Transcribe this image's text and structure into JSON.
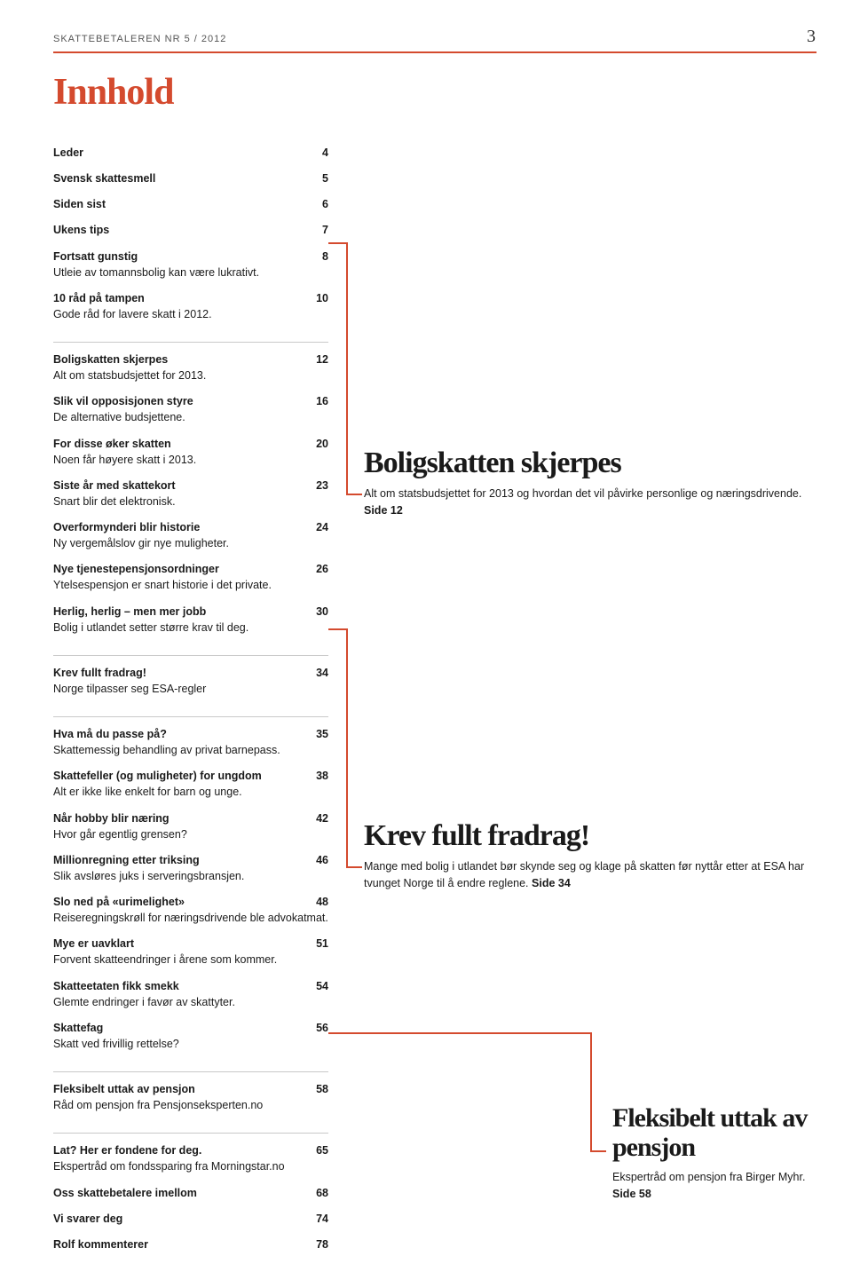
{
  "header": {
    "pub": "SKATTEBETALEREN NR 5 / 2012",
    "page": "3"
  },
  "title": "Innhold",
  "accent": "#d44a2e",
  "toc": {
    "sections": [
      {
        "items": [
          {
            "title": "Leder",
            "page": "4"
          },
          {
            "title": "Svensk skattesmell",
            "page": "5"
          },
          {
            "title": "Siden sist",
            "page": "6"
          },
          {
            "title": "Ukens tips",
            "page": "7"
          },
          {
            "title": "Fortsatt gunstig",
            "sub": "Utleie av tomannsbolig kan være lukrativt.",
            "page": "8"
          },
          {
            "title": "10 råd på tampen",
            "sub": "Gode råd for lavere skatt i 2012.",
            "page": "10"
          }
        ]
      },
      {
        "items": [
          {
            "title": "Boligskatten skjerpes",
            "sub": "Alt om statsbudsjettet for 2013.",
            "page": "12"
          },
          {
            "title": "Slik vil opposisjonen styre",
            "sub": "De alternative budsjettene.",
            "page": "16"
          },
          {
            "title": "For disse øker skatten",
            "sub": "Noen får høyere skatt i 2013.",
            "page": "20"
          },
          {
            "title": "Siste år med skattekort",
            "sub": "Snart blir det elektronisk.",
            "page": "23"
          },
          {
            "title": "Overformynderi blir historie",
            "sub": "Ny vergemålslov gir nye muligheter.",
            "page": "24"
          },
          {
            "title": "Nye tjenestepensjonsordninger",
            "sub": "Ytelsespensjon er snart historie i det private.",
            "page": "26"
          },
          {
            "title": "Herlig, herlig – men mer jobb",
            "sub": "Bolig i utlandet setter større krav til deg.",
            "page": "30"
          }
        ]
      },
      {
        "items": [
          {
            "title": "Krev fullt fradrag!",
            "sub": "Norge tilpasser seg ESA-regler",
            "page": "34"
          }
        ]
      },
      {
        "items": [
          {
            "title": "Hva må du passe på?",
            "sub": "Skattemessig behandling av privat barnepass.",
            "page": "35"
          },
          {
            "title": "Skattefeller (og muligheter) for ungdom",
            "sub": "Alt er ikke like enkelt for barn og unge.",
            "page": "38"
          },
          {
            "title": "Når hobby blir næring",
            "sub": "Hvor går egentlig grensen?",
            "page": "42"
          },
          {
            "title": "Millionregning etter triksing",
            "sub": "Slik avsløres juks i serveringsbransjen.",
            "page": "46"
          },
          {
            "title": "Slo ned på «urimelighet»",
            "sub": "Reiseregningskrøll for næringsdrivende ble advokatmat.",
            "page": "48"
          },
          {
            "title": "Mye er uavklart",
            "sub": "Forvent skatteendringer i årene som kommer.",
            "page": "51"
          },
          {
            "title": "Skatteetaten fikk smekk",
            "sub": "Glemte endringer i favør av skattyter.",
            "page": "54"
          },
          {
            "title": "Skattefag",
            "sub": "Skatt ved frivillig rettelse?",
            "page": "56"
          }
        ]
      },
      {
        "items": [
          {
            "title": "Fleksibelt uttak av pensjon",
            "sub": "Råd om pensjon fra Pensjonseksperten.no",
            "page": "58"
          }
        ]
      },
      {
        "items": [
          {
            "title": "Lat? Her er fondene for deg.",
            "sub": "Ekspertråd om fondssparing fra Morningstar.no",
            "page": "65"
          },
          {
            "title": "Oss skattebetalere imellom",
            "page": "68"
          },
          {
            "title": "Vi svarer deg",
            "page": "74"
          },
          {
            "title": "Rolf kommenterer",
            "page": "78"
          }
        ]
      }
    ]
  },
  "features": {
    "f1": {
      "h": "Boligskatten skjerpes",
      "lead": "Alt om statsbudsjettet for 2013 og hvordan det vil påvirke personlige og næringsdrivende. ",
      "side": "Side 12"
    },
    "f2": {
      "h": "Krev fullt fradrag!",
      "lead": "Mange med bolig i utlandet bør skynde seg og klage på skatten før nyttår etter at ESA har tvunget Norge til å endre reglene. ",
      "side": "Side 34"
    },
    "f3": {
      "h": "Fleksibelt uttak av pensjon",
      "lead": "Ekspertråd om pensjon fra Birger Myhr. ",
      "side": "Side 58"
    }
  }
}
